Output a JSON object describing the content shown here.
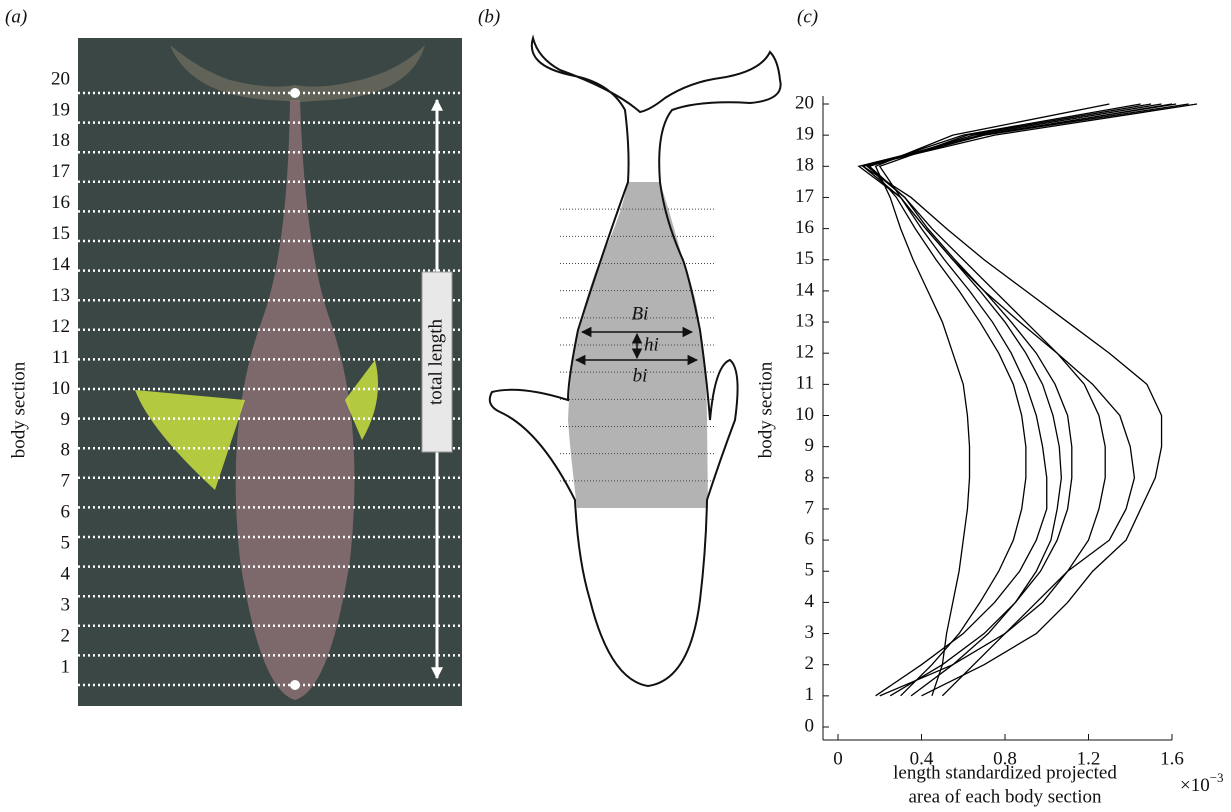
{
  "panel_a": {
    "label": "(a)",
    "y_axis_label": "body section",
    "section_labels": [
      1,
      2,
      3,
      4,
      5,
      6,
      7,
      8,
      9,
      10,
      11,
      12,
      13,
      14,
      15,
      16,
      17,
      18,
      19,
      20
    ],
    "annotation": "total length"
  },
  "panel_b": {
    "label": "(b)",
    "width_label_B": "Bi",
    "height_label": "hi",
    "width_label_b": "bi"
  },
  "chart_data": {
    "type": "line",
    "panel_label": "(c)",
    "y_label": "body section",
    "x_label": [
      "length standardized projected",
      "area of each body section"
    ],
    "x_multiplier": {
      "base": "×10",
      "exponent": "−3"
    },
    "sections": [
      1,
      2,
      3,
      4,
      5,
      6,
      7,
      8,
      9,
      10,
      11,
      12,
      13,
      14,
      15,
      16,
      17,
      18,
      19,
      20
    ],
    "series": [
      {
        "color": "#000",
        "values": [
          0.45,
          0.5,
          0.52,
          0.55,
          0.58,
          0.6,
          0.62,
          0.63,
          0.63,
          0.62,
          0.6,
          0.55,
          0.5,
          0.43,
          0.36,
          0.3,
          0.25,
          0.18,
          0.55,
          1.3
        ]
      },
      {
        "color": "#000",
        "values": [
          0.3,
          0.45,
          0.58,
          0.68,
          0.77,
          0.84,
          0.88,
          0.9,
          0.9,
          0.88,
          0.84,
          0.77,
          0.68,
          0.58,
          0.47,
          0.37,
          0.28,
          0.15,
          0.6,
          1.45
        ]
      },
      {
        "color": "#000",
        "values": [
          0.25,
          0.5,
          0.7,
          0.85,
          0.97,
          1.05,
          1.1,
          1.12,
          1.12,
          1.1,
          1.04,
          0.95,
          0.83,
          0.7,
          0.56,
          0.43,
          0.32,
          0.15,
          0.65,
          1.55
        ]
      },
      {
        "color": "#000",
        "values": [
          0.2,
          0.55,
          0.8,
          0.98,
          1.1,
          1.2,
          1.25,
          1.28,
          1.28,
          1.25,
          1.18,
          1.05,
          0.9,
          0.75,
          0.6,
          0.45,
          0.32,
          0.14,
          0.7,
          1.6
        ]
      },
      {
        "color": "#000",
        "values": [
          0.4,
          0.7,
          0.95,
          1.1,
          1.22,
          1.38,
          1.45,
          1.52,
          1.55,
          1.55,
          1.48,
          1.3,
          1.1,
          0.9,
          0.7,
          0.52,
          0.35,
          0.12,
          0.75,
          1.72
        ]
      },
      {
        "color": "#000",
        "values": [
          0.35,
          0.55,
          0.72,
          0.85,
          0.95,
          1.02,
          1.05,
          1.07,
          1.06,
          1.03,
          0.98,
          0.9,
          0.8,
          0.68,
          0.55,
          0.42,
          0.3,
          0.12,
          0.68,
          1.62
        ]
      },
      {
        "color": "#000",
        "values": [
          0.18,
          0.4,
          0.6,
          0.75,
          0.87,
          0.95,
          1.0,
          1.0,
          0.98,
          0.95,
          0.9,
          0.83,
          0.74,
          0.63,
          0.51,
          0.4,
          0.3,
          0.2,
          0.62,
          1.5
        ]
      },
      {
        "color": "#000",
        "values": [
          0.5,
          0.65,
          0.8,
          0.95,
          1.1,
          1.3,
          1.38,
          1.42,
          1.4,
          1.35,
          1.22,
          1.05,
          0.87,
          0.7,
          0.55,
          0.42,
          0.3,
          0.1,
          0.7,
          1.68
        ]
      }
    ],
    "xlim": [
      0,
      1.6
    ],
    "xticks": [
      0,
      0.4,
      0.8,
      1.2,
      1.6
    ],
    "ylim": [
      0,
      20
    ],
    "yticks": [
      0,
      1,
      2,
      3,
      4,
      5,
      6,
      7,
      8,
      9,
      10,
      11,
      12,
      13,
      14,
      15,
      16,
      17,
      18,
      19,
      20
    ]
  }
}
